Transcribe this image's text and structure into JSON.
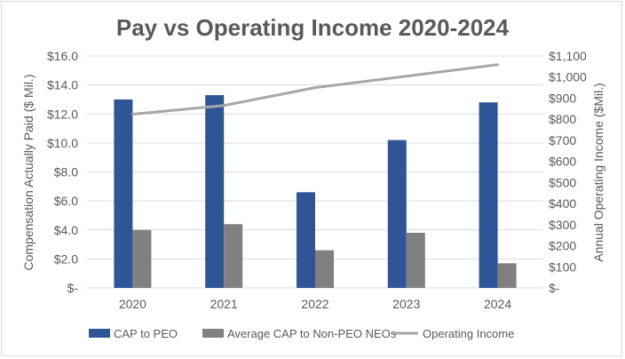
{
  "chart_data": {
    "type": "bar",
    "title": "Pay vs Operating Income 2020-2024",
    "categories": [
      "2020",
      "2021",
      "2022",
      "2023",
      "2024"
    ],
    "ylabel": "Compensation Actually Paid ($ Mil.)",
    "y2label": "Annual Operating Income ($Mil.)",
    "ylim": [
      0,
      16
    ],
    "y2lim": [
      0,
      1100
    ],
    "yticks": [
      "$-",
      "$2.0",
      "$4.0",
      "$6.0",
      "$8.0",
      "$10.0",
      "$12.0",
      "$14.0",
      "$16.0"
    ],
    "y2ticks": [
      "$-",
      "$100",
      "$200",
      "$300",
      "$400",
      "$500",
      "$600",
      "$700",
      "$800",
      "$900",
      "$1,000",
      "$1,100"
    ],
    "grid": true,
    "legend_placement": "bottom",
    "series": [
      {
        "name": "CAP to PEO",
        "type": "bar",
        "axis": "left",
        "color": "#2f5597",
        "values": [
          13.0,
          13.3,
          6.6,
          10.2,
          12.8
        ]
      },
      {
        "name": "Average CAP to Non-PEO NEOs",
        "type": "bar",
        "axis": "left",
        "color": "#808080",
        "values": [
          4.0,
          4.4,
          2.6,
          3.8,
          1.7
        ]
      },
      {
        "name": "Operating Income",
        "type": "line",
        "axis": "right",
        "color": "#a6a6a6",
        "values": [
          824,
          865,
          950,
          1004,
          1059
        ]
      }
    ]
  }
}
